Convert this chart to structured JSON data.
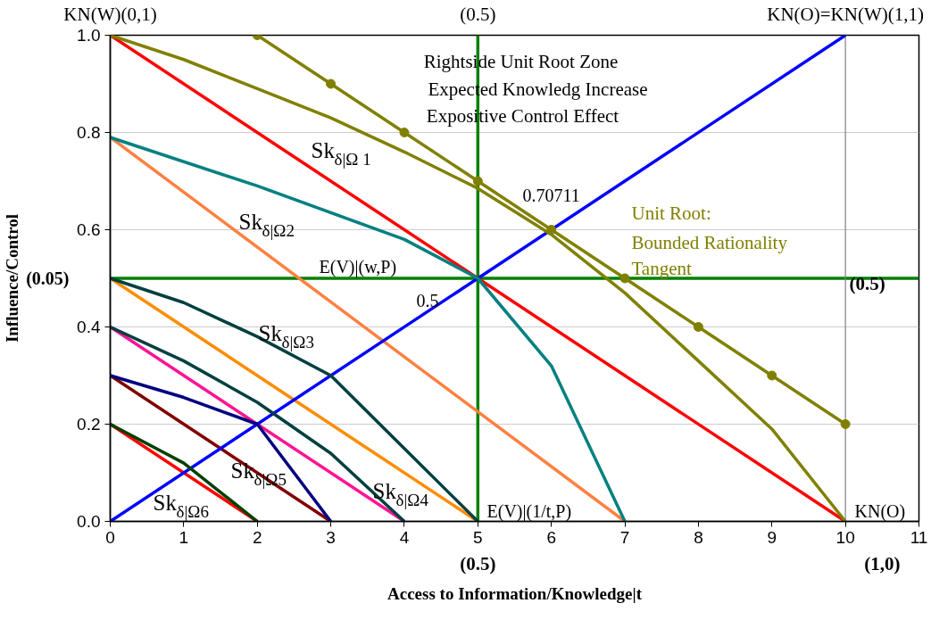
{
  "chart_data": {
    "type": "line",
    "xlabel": "Access to Information/Knowledge|t",
    "ylabel": "Influence/Control",
    "xlim": [
      0,
      11
    ],
    "xticks": [
      0,
      1,
      2,
      3,
      4,
      5,
      6,
      7,
      8,
      9,
      10,
      11
    ],
    "ylim": [
      0,
      1
    ],
    "yticks": [
      {
        "value": 0,
        "label": "0.0"
      },
      0.2,
      0.4,
      0.6,
      0.8,
      {
        "value": 1,
        "label": "1.0"
      }
    ],
    "grid": "y",
    "line_style": "solid",
    "series": [
      {
        "color": "#ff0000",
        "x": [
          0,
          10
        ],
        "values": [
          1,
          0
        ]
      },
      {
        "color": "#ff0000",
        "x": [
          0,
          2
        ],
        "values": [
          0.2,
          0
        ]
      },
      {
        "color": "#ff8040",
        "x": [
          0,
          7
        ],
        "values": [
          0.79,
          0
        ]
      },
      {
        "color": "#ff8c00",
        "x": [
          0,
          5
        ],
        "values": [
          0.5,
          0
        ]
      },
      {
        "color": "#ff1493",
        "x": [
          0,
          4
        ],
        "values": [
          0.4,
          0
        ]
      },
      {
        "color": "#800000",
        "x": [
          0,
          3
        ],
        "values": [
          0.3,
          0
        ]
      },
      {
        "color": "#0000ff",
        "x": [
          0,
          10
        ],
        "values": [
          0,
          1
        ]
      },
      {
        "color": "#008080",
        "x": [
          0,
          2,
          4,
          5,
          6,
          7
        ],
        "values": [
          0.79,
          0.69,
          0.58,
          0.5,
          0.32,
          0
        ]
      },
      {
        "color": "#004040",
        "x": [
          0,
          1,
          2,
          3,
          4,
          5
        ],
        "values": [
          0.5,
          0.45,
          0.38,
          0.3,
          0.15,
          0
        ]
      },
      {
        "color": "#004040",
        "x": [
          0,
          1,
          2,
          3,
          4
        ],
        "values": [
          0.4,
          0.33,
          0.245,
          0.14,
          0
        ]
      },
      {
        "color": "#000080",
        "x": [
          0,
          1,
          2,
          3
        ],
        "values": [
          0.3,
          0.255,
          0.2,
          0
        ]
      },
      {
        "color": "#004000",
        "x": [
          0,
          1,
          2
        ],
        "values": [
          0.2,
          0.12,
          0
        ]
      },
      {
        "color": "#808000",
        "x": [
          0,
          1,
          2,
          3,
          4,
          5,
          6,
          7,
          8,
          9,
          10
        ],
        "values": [
          1,
          0.95,
          0.89,
          0.83,
          0.76,
          0.685,
          0.59,
          0.47,
          0.33,
          0.19,
          0
        ]
      },
      {
        "color": "#808000",
        "marker": "circle",
        "x": [
          2,
          3,
          4,
          5,
          6,
          7,
          8,
          9,
          10
        ],
        "values": [
          1,
          0.9,
          0.8,
          0.7,
          0.6,
          0.5,
          0.4,
          0.3,
          0.2
        ]
      }
    ],
    "ref_lines": [
      {
        "axis": "x",
        "value": 5,
        "label": null,
        "color": "#008000"
      },
      {
        "axis": "y",
        "value": 0.5,
        "label": null,
        "color": "#008000"
      },
      {
        "axis": "x",
        "value": 10,
        "label": null,
        "color": "#808080"
      }
    ],
    "annotations": [
      "Rightside Unit Root Zone",
      "Expected Knowledg Increase",
      "Expositive Control Effect",
      "Sk$_{δ|Ω 1}$",
      "Sk$_{δ|Ω2}$",
      "Sk$_{δ|Ω3}$",
      "Sk$_{δ|Ω4}$",
      "Sk$_{δ|Ω5}$",
      "Sk$_{δ|Ω6}$",
      "0.70711",
      "0.5",
      "E(V)|(w,P)",
      "E(V)|(1/t,P)",
      "KN(O)",
      "Unit Root:",
      "Bounded Rationality",
      "Tangent",
      "KN(W)(0,1)",
      "KN(O)=KN(W)(1,1)",
      "(0.05)",
      "(0.5)",
      "(0.5)",
      "(0.5)",
      "(1,0)"
    ]
  }
}
